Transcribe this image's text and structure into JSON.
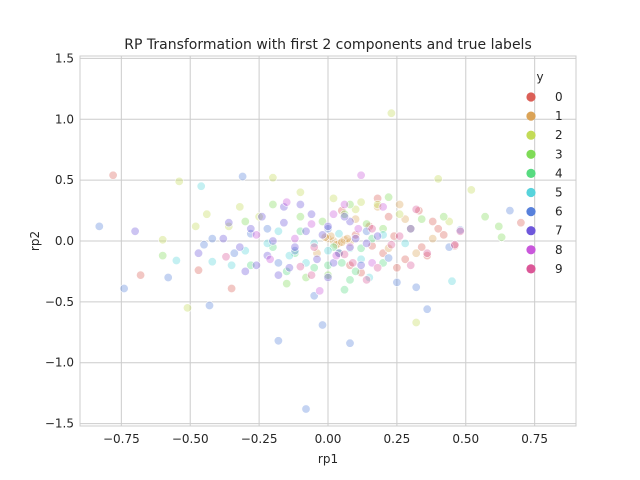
{
  "chart_data": {
    "type": "scatter",
    "title": "RP Transformation with first 2 components and true labels",
    "xlabel": "rp1",
    "ylabel": "rp2",
    "xlim": [
      -0.9,
      0.9
    ],
    "ylim": [
      -1.52,
      1.52
    ],
    "xticks": [
      -0.75,
      -0.5,
      -0.25,
      0.0,
      0.25,
      0.5,
      0.75
    ],
    "xtick_labels": [
      "−0.75",
      "−0.50",
      "−0.25",
      "0.00",
      "0.25",
      "0.50",
      "0.75"
    ],
    "yticks": [
      -1.5,
      -1.0,
      -0.5,
      0.0,
      0.5,
      1.0,
      1.5
    ],
    "ytick_labels": [
      "−1.5",
      "−1.0",
      "−0.5",
      "0.0",
      "0.5",
      "1.0",
      "1.5"
    ],
    "grid": true,
    "legend": {
      "title": "y",
      "placement": "top-right"
    },
    "series": [
      {
        "name": "0",
        "color": "#db5f57",
        "points": [
          [
            -0.78,
            0.54
          ],
          [
            -0.68,
            -0.28
          ],
          [
            -0.47,
            -0.24
          ],
          [
            0.12,
            -0.26
          ],
          [
            0.18,
            0.35
          ],
          [
            0.22,
            0.2
          ],
          [
            0.25,
            -0.22
          ],
          [
            0.3,
            0.1
          ],
          [
            0.34,
            -0.05
          ],
          [
            0.38,
            0.16
          ],
          [
            0.42,
            0.05
          ],
          [
            0.46,
            -0.04
          ],
          [
            0.2,
            -0.1
          ],
          [
            0.15,
            0.12
          ],
          [
            0.28,
            -0.15
          ],
          [
            0.33,
            0.25
          ],
          [
            0.1,
            0.05
          ],
          [
            0.24,
            0.04
          ],
          [
            0.36,
            -0.12
          ],
          [
            0.05,
            0.25
          ],
          [
            -0.35,
            -0.39
          ],
          [
            0.7,
            0.15
          ],
          [
            0.4,
            0.1
          ],
          [
            0.16,
            -0.04
          ],
          [
            0.08,
            -0.2
          ]
        ]
      },
      {
        "name": "1",
        "color": "#dba357",
        "points": [
          [
            0.0,
            0.02
          ],
          [
            0.02,
            0.0
          ],
          [
            0.04,
            -0.02
          ],
          [
            0.06,
            0.01
          ],
          [
            0.08,
            -0.01
          ],
          [
            0.01,
            0.04
          ],
          [
            0.03,
            -0.03
          ],
          [
            0.07,
            0.02
          ],
          [
            0.05,
            -0.01
          ],
          [
            -0.01,
            0.03
          ],
          [
            0.28,
            0.18
          ],
          [
            0.32,
            -0.1
          ],
          [
            0.18,
            0.28
          ],
          [
            0.1,
            0.18
          ],
          [
            0.22,
            -0.06
          ],
          [
            0.38,
            0.02
          ],
          [
            0.26,
            0.3
          ],
          [
            -0.04,
            -0.1
          ]
        ]
      },
      {
        "name": "2",
        "color": "#c3db57",
        "points": [
          [
            0.23,
            1.05
          ],
          [
            0.4,
            0.51
          ],
          [
            0.32,
            -0.67
          ],
          [
            -0.51,
            -0.55
          ],
          [
            -0.54,
            0.49
          ],
          [
            -0.48,
            0.12
          ],
          [
            -0.32,
            0.28
          ],
          [
            -0.2,
            0.52
          ],
          [
            -0.1,
            0.4
          ],
          [
            0.02,
            0.35
          ],
          [
            0.12,
            0.32
          ],
          [
            0.18,
            0.3
          ],
          [
            0.52,
            0.42
          ],
          [
            -0.6,
            0.01
          ],
          [
            -0.44,
            0.22
          ],
          [
            -0.36,
            0.12
          ],
          [
            0.44,
            0.16
          ],
          [
            -0.25,
            0.2
          ],
          [
            0.1,
            0.26
          ],
          [
            0.26,
            0.22
          ]
        ]
      },
      {
        "name": "3",
        "color": "#7fdb57",
        "points": [
          [
            0.57,
            0.2
          ],
          [
            0.62,
            0.12
          ],
          [
            0.63,
            0.03
          ],
          [
            0.42,
            0.2
          ],
          [
            0.06,
            0.22
          ],
          [
            0.14,
            0.14
          ],
          [
            -0.02,
            0.16
          ],
          [
            -0.08,
            -0.3
          ],
          [
            -0.15,
            -0.35
          ],
          [
            0.0,
            -0.28
          ],
          [
            -0.2,
            0.3
          ],
          [
            -0.3,
            0.16
          ],
          [
            0.34,
            0.18
          ],
          [
            0.2,
            0.1
          ],
          [
            0.08,
            0.3
          ],
          [
            -0.1,
            0.2
          ],
          [
            -0.6,
            -0.12
          ],
          [
            0.22,
            0.36
          ]
        ]
      },
      {
        "name": "4",
        "color": "#57db80",
        "points": [
          [
            0.0,
            -0.2
          ],
          [
            0.05,
            -0.18
          ],
          [
            -0.05,
            -0.22
          ],
          [
            0.1,
            -0.25
          ],
          [
            0.06,
            -0.4
          ],
          [
            -0.12,
            -0.1
          ],
          [
            0.04,
            -0.1
          ],
          [
            0.12,
            -0.06
          ],
          [
            -0.2,
            -0.05
          ],
          [
            -0.28,
            -0.2
          ],
          [
            0.2,
            -0.18
          ],
          [
            0.08,
            -0.32
          ],
          [
            -0.15,
            -0.25
          ],
          [
            0.02,
            -0.05
          ],
          [
            -0.1,
            0.08
          ],
          [
            0.16,
            0.02
          ]
        ]
      },
      {
        "name": "5",
        "color": "#57d3db",
        "points": [
          [
            -0.46,
            0.45
          ],
          [
            0.45,
            -0.33
          ],
          [
            -0.55,
            -0.16
          ],
          [
            -0.42,
            -0.17
          ],
          [
            -0.22,
            -0.02
          ],
          [
            -0.14,
            -0.12
          ],
          [
            0.0,
            -0.08
          ],
          [
            0.08,
            -0.06
          ],
          [
            0.12,
            -0.15
          ],
          [
            -0.3,
            -0.08
          ],
          [
            -0.08,
            -0.18
          ],
          [
            0.04,
            0.06
          ],
          [
            -0.18,
            0.08
          ],
          [
            0.2,
            0.05
          ],
          [
            0.28,
            -0.02
          ],
          [
            -0.35,
            -0.2
          ],
          [
            0.15,
            -0.3
          ],
          [
            -0.05,
            -0.02
          ]
        ]
      },
      {
        "name": "6",
        "color": "#5780db",
        "points": [
          [
            -0.83,
            0.12
          ],
          [
            -0.74,
            -0.39
          ],
          [
            -0.58,
            -0.3
          ],
          [
            -0.43,
            -0.53
          ],
          [
            -0.31,
            0.53
          ],
          [
            -0.18,
            -0.82
          ],
          [
            -0.08,
            -1.38
          ],
          [
            -0.02,
            -0.69
          ],
          [
            0.08,
            -0.84
          ],
          [
            0.25,
            -0.34
          ],
          [
            0.32,
            -0.38
          ],
          [
            0.36,
            -0.56
          ],
          [
            -0.45,
            -0.03
          ],
          [
            -0.34,
            -0.1
          ],
          [
            -0.22,
            0.1
          ],
          [
            -0.12,
            -0.08
          ],
          [
            0.0,
            0.1
          ],
          [
            0.14,
            0.08
          ],
          [
            0.3,
            0.1
          ],
          [
            0.44,
            -0.05
          ],
          [
            0.66,
            0.25
          ],
          [
            -0.28,
            0.06
          ],
          [
            -0.18,
            -0.18
          ],
          [
            0.22,
            -0.14
          ],
          [
            -0.42,
            0.02
          ],
          [
            -0.05,
            -0.45
          ],
          [
            0.48,
            0.09
          ]
        ]
      },
      {
        "name": "7",
        "color": "#6e57db",
        "points": [
          [
            -0.7,
            0.08
          ],
          [
            -0.47,
            -0.1
          ],
          [
            -0.36,
            0.15
          ],
          [
            -0.26,
            -0.2
          ],
          [
            -0.2,
            0.0
          ],
          [
            -0.16,
            0.15
          ],
          [
            -0.12,
            -0.05
          ],
          [
            -0.08,
            0.08
          ],
          [
            -0.04,
            -0.15
          ],
          [
            0.0,
            0.12
          ],
          [
            0.04,
            -0.1
          ],
          [
            0.1,
            0.02
          ],
          [
            -0.28,
            0.1
          ],
          [
            -0.22,
            -0.12
          ],
          [
            -0.14,
            -0.22
          ],
          [
            -0.06,
            0.22
          ],
          [
            0.02,
            -0.18
          ],
          [
            0.08,
            0.16
          ],
          [
            0.14,
            -0.02
          ],
          [
            -0.32,
            -0.05
          ],
          [
            -0.24,
            0.2
          ],
          [
            -0.18,
            -0.28
          ],
          [
            -0.1,
            0.3
          ],
          [
            0.06,
            0.2
          ],
          [
            0.12,
            -0.2
          ],
          [
            0.18,
            0.04
          ],
          [
            -0.38,
            0.02
          ],
          [
            -0.02,
            0.05
          ],
          [
            0.0,
            -0.3
          ],
          [
            -0.3,
            -0.25
          ],
          [
            -0.16,
            0.28
          ]
        ]
      },
      {
        "name": "8",
        "color": "#c957db",
        "points": [
          [
            -0.03,
            -0.41
          ],
          [
            -0.12,
            0.02
          ],
          [
            0.03,
            -0.12
          ],
          [
            0.11,
            0.1
          ],
          [
            -0.21,
            -0.15
          ],
          [
            0.08,
            -0.05
          ],
          [
            -0.06,
            0.14
          ],
          [
            0.12,
            0.54
          ],
          [
            0.2,
            0.28
          ],
          [
            -0.15,
            0.32
          ],
          [
            0.02,
            0.22
          ],
          [
            -0.26,
            0.05
          ],
          [
            0.06,
            0.3
          ],
          [
            0.16,
            -0.18
          ]
        ]
      },
      {
        "name": "9",
        "color": "#db5797",
        "points": [
          [
            -0.37,
            -0.13
          ],
          [
            -0.1,
            -0.21
          ],
          [
            0.09,
            -0.18
          ],
          [
            0.06,
            -0.11
          ],
          [
            0.16,
            0.1
          ],
          [
            0.23,
            -0.03
          ],
          [
            0.3,
            -0.2
          ],
          [
            -0.05,
            -0.05
          ],
          [
            0.46,
            -0.03
          ],
          [
            0.48,
            0.08
          ],
          [
            0.26,
            0.04
          ],
          [
            0.36,
            -0.1
          ],
          [
            0.18,
            -0.22
          ],
          [
            0.32,
            0.26
          ],
          [
            -0.06,
            -0.28
          ],
          [
            0.14,
            -0.32
          ]
        ]
      }
    ]
  }
}
